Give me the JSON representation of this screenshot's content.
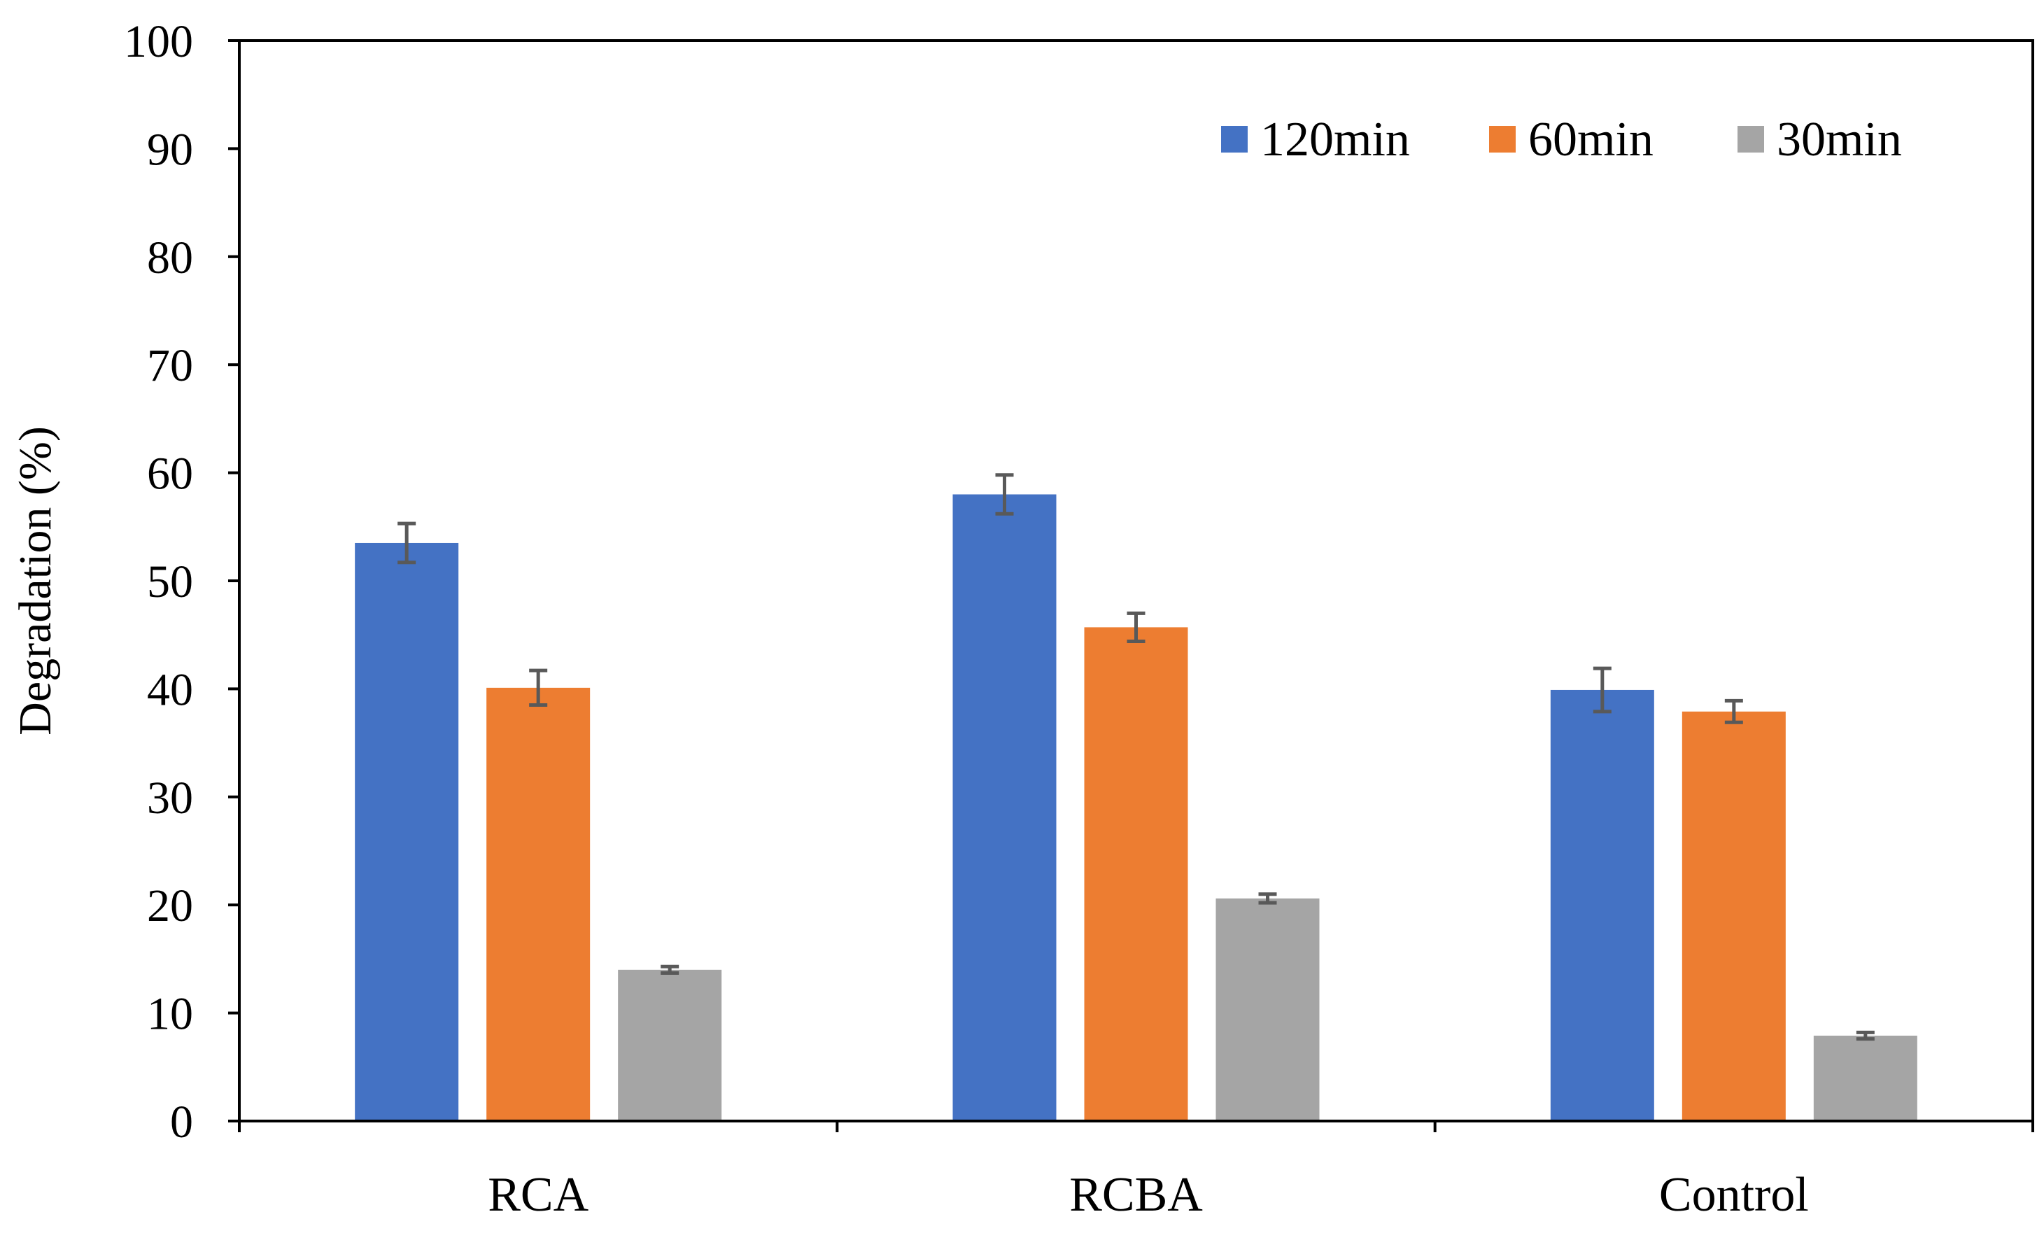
{
  "chart_data": {
    "type": "bar",
    "title": "",
    "xlabel": "",
    "ylabel": "Degradation (%)",
    "ylim": [
      0,
      100
    ],
    "yticks": [
      0,
      10,
      20,
      30,
      40,
      50,
      60,
      70,
      80,
      90,
      100
    ],
    "grid": false,
    "legend_position": "top-right",
    "categories": [
      "RCA",
      "RCBA",
      "Control"
    ],
    "series": [
      {
        "name": "120min",
        "color": "#4472C4",
        "values": [
          53.5,
          58.0,
          39.9
        ],
        "errors": [
          1.8,
          1.8,
          2.0
        ]
      },
      {
        "name": "60min",
        "color": "#ED7D31",
        "values": [
          40.1,
          45.7,
          37.9
        ],
        "errors": [
          1.6,
          1.3,
          1.0
        ]
      },
      {
        "name": "30min",
        "color": "#A5A5A5",
        "values": [
          14.0,
          20.6,
          7.9
        ],
        "errors": [
          0.3,
          0.4,
          0.3
        ]
      }
    ],
    "error_bar_color": "#595959"
  }
}
